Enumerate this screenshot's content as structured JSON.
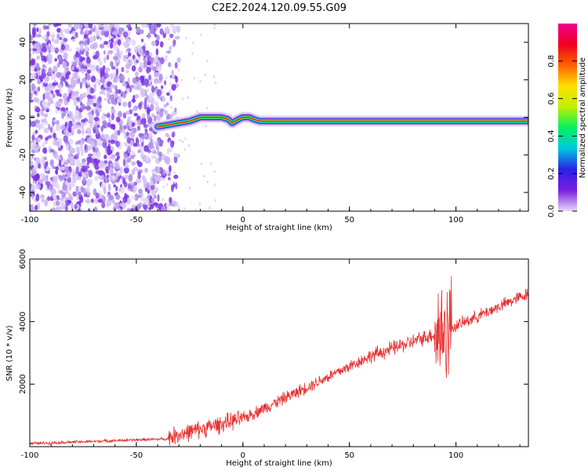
{
  "title": "C2E2.2024.120.09.55.G09",
  "chart_data": [
    {
      "type": "heatmap",
      "xlabel": "Height of straight line (km)",
      "ylabel": "Frequency (Hz)",
      "xlim": [
        -100,
        134
      ],
      "ylim": [
        -50,
        50
      ],
      "xticks": [
        -100,
        -50,
        0,
        50,
        100
      ],
      "yticks": [
        -40,
        -20,
        0,
        20,
        40
      ],
      "colorbar": {
        "label": "Normalized spectral amplitude",
        "range": [
          0,
          1
        ],
        "ticks": [
          0.0,
          0.2,
          0.4,
          0.6,
          0.8
        ],
        "colormap": [
          "#e8d8f8",
          "#7a1fe0",
          "#2a20e8",
          "#00c8e0",
          "#00f060",
          "#c0f000",
          "#ffe000",
          "#ff6000",
          "#f00020",
          "#f00090"
        ]
      },
      "noise_region_x": [
        -100,
        -38
      ],
      "signal_start_x": -40,
      "trace": {
        "x": [
          -40,
          -35,
          -30,
          -25,
          -20,
          -15,
          -10,
          -7,
          -5,
          -2,
          0,
          3,
          5,
          8,
          10,
          20,
          40,
          60,
          80,
          95,
          110,
          134
        ],
        "y": [
          -5,
          -4,
          -3,
          -2,
          0,
          0,
          0,
          -1,
          -3,
          -1,
          0,
          0,
          -1,
          -2,
          -2,
          -2,
          -2,
          -2,
          -2,
          -2,
          -2,
          -2
        ]
      }
    },
    {
      "type": "line",
      "xlabel": "Height of straight line (km)",
      "ylabel": "SNR (10 * v/v)",
      "xlim": [
        -100,
        134
      ],
      "ylim": [
        0,
        6000
      ],
      "xticks": [
        -100,
        -50,
        0,
        50,
        100
      ],
      "yticks": [
        2000,
        4000,
        6000
      ],
      "color": "#e83030",
      "segments": [
        {
          "x": [
            -100,
            -35
          ],
          "y": [
            100,
            250
          ],
          "noise": 60
        },
        {
          "x": [
            -35,
            0
          ],
          "y": [
            300,
            900
          ],
          "noise": 350
        },
        {
          "x": [
            0,
            60
          ],
          "y": [
            900,
            2900
          ],
          "noise": 250
        },
        {
          "x": [
            60,
            90
          ],
          "y": [
            2900,
            3600
          ],
          "noise": 300
        },
        {
          "x": [
            90,
            98
          ],
          "y": [
            3600,
            3800
          ],
          "noise": 2200
        },
        {
          "x": [
            98,
            134
          ],
          "y": [
            3800,
            4900
          ],
          "noise": 250
        }
      ]
    }
  ]
}
